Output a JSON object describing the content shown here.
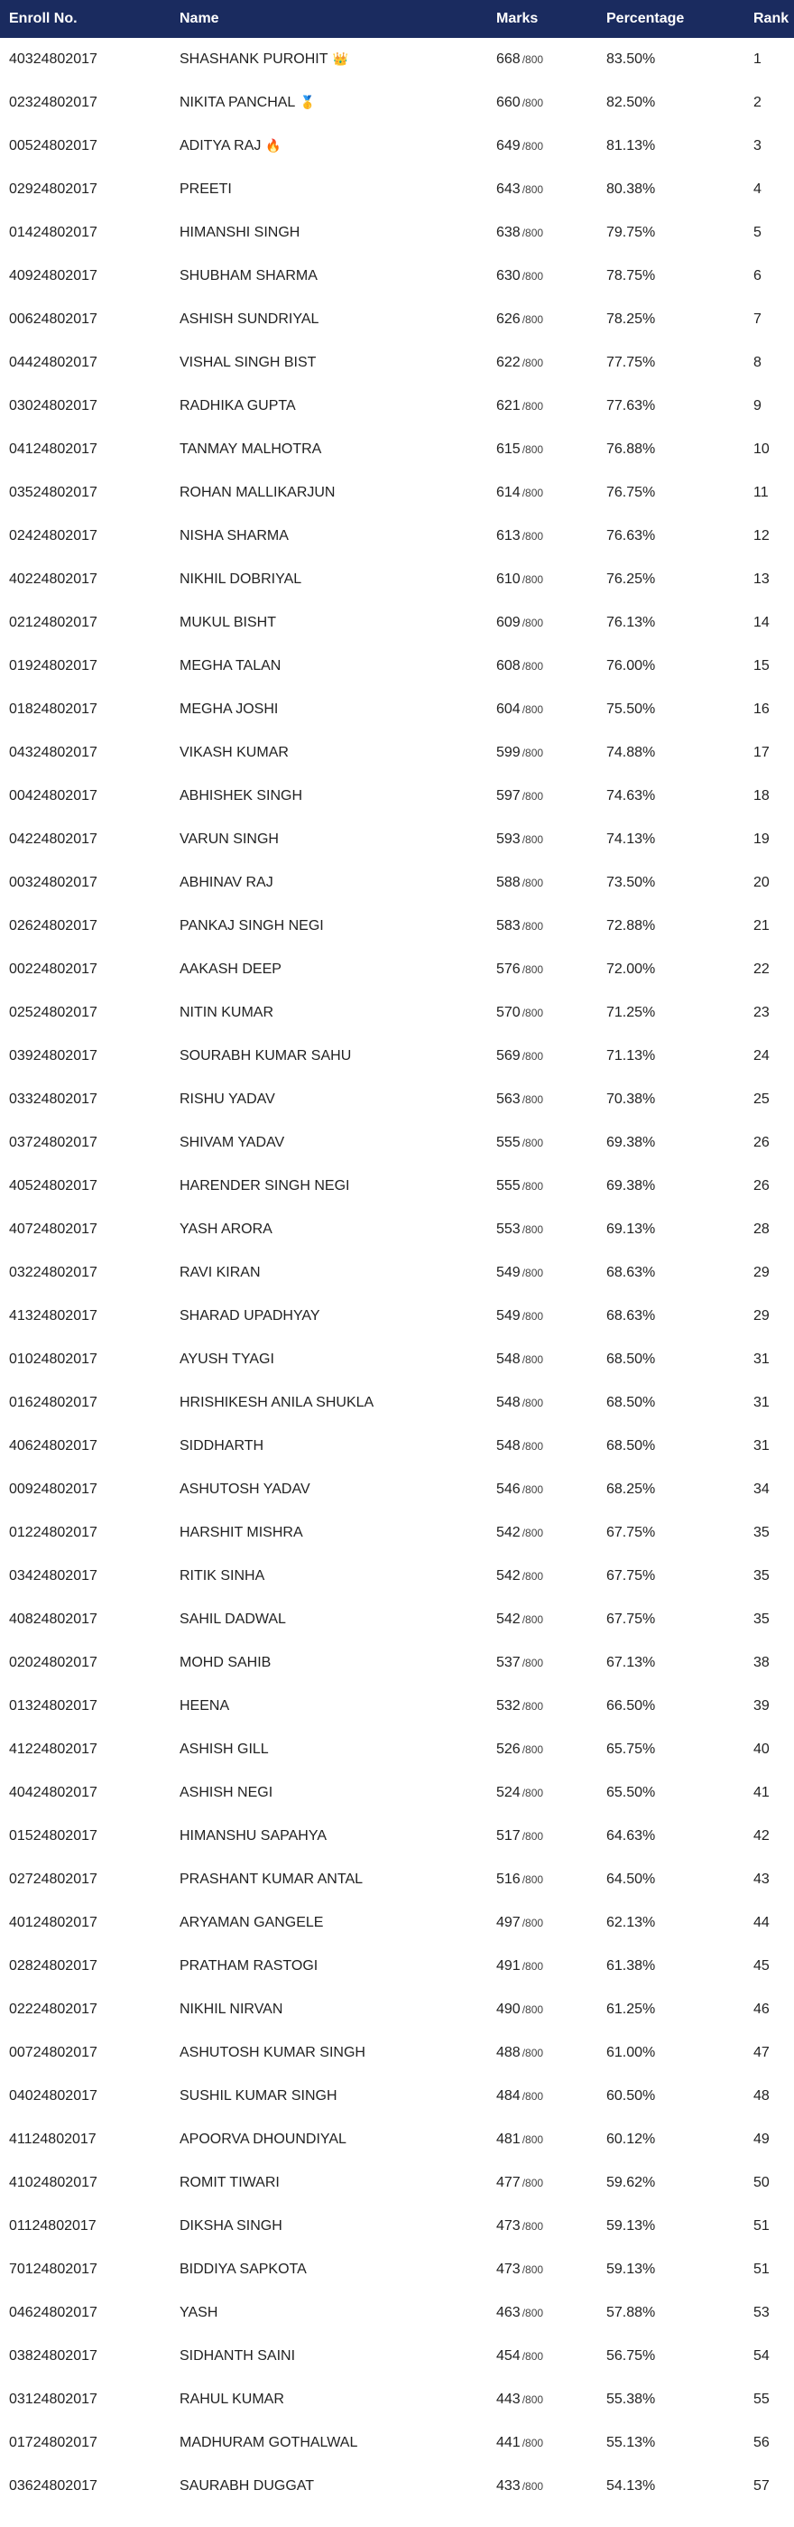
{
  "header": {
    "enroll": "Enroll No.",
    "name": "Name",
    "marks": "Marks",
    "percentage": "Percentage",
    "rank": "Rank"
  },
  "total_label": "/800",
  "rows": [
    {
      "enroll": "40324802017",
      "name": "SHASHANK PUROHIT",
      "badge": "👑",
      "marks": "668",
      "percentage": "83.50%",
      "rank": "1"
    },
    {
      "enroll": "02324802017",
      "name": "NIKITA PANCHAL",
      "badge": "🥇",
      "marks": "660",
      "percentage": "82.50%",
      "rank": "2"
    },
    {
      "enroll": "00524802017",
      "name": "ADITYA RAJ",
      "badge": "🔥",
      "marks": "649",
      "percentage": "81.13%",
      "rank": "3"
    },
    {
      "enroll": "02924802017",
      "name": "PREETI",
      "marks": "643",
      "percentage": "80.38%",
      "rank": "4"
    },
    {
      "enroll": "01424802017",
      "name": "HIMANSHI SINGH",
      "marks": "638",
      "percentage": "79.75%",
      "rank": "5"
    },
    {
      "enroll": "40924802017",
      "name": "SHUBHAM SHARMA",
      "marks": "630",
      "percentage": "78.75%",
      "rank": "6"
    },
    {
      "enroll": "00624802017",
      "name": "ASHISH SUNDRIYAL",
      "marks": "626",
      "percentage": "78.25%",
      "rank": "7"
    },
    {
      "enroll": "04424802017",
      "name": "VISHAL SINGH BIST",
      "marks": "622",
      "percentage": "77.75%",
      "rank": "8"
    },
    {
      "enroll": "03024802017",
      "name": "RADHIKA GUPTA",
      "marks": "621",
      "percentage": "77.63%",
      "rank": "9"
    },
    {
      "enroll": "04124802017",
      "name": "TANMAY MALHOTRA",
      "marks": "615",
      "percentage": "76.88%",
      "rank": "10"
    },
    {
      "enroll": "03524802017",
      "name": "ROHAN MALLIKARJUN",
      "marks": "614",
      "percentage": "76.75%",
      "rank": "11"
    },
    {
      "enroll": "02424802017",
      "name": "NISHA SHARMA",
      "marks": "613",
      "percentage": "76.63%",
      "rank": "12"
    },
    {
      "enroll": "40224802017",
      "name": "NIKHIL DOBRIYAL",
      "marks": "610",
      "percentage": "76.25%",
      "rank": "13"
    },
    {
      "enroll": "02124802017",
      "name": "MUKUL BISHT",
      "marks": "609",
      "percentage": "76.13%",
      "rank": "14"
    },
    {
      "enroll": "01924802017",
      "name": "MEGHA TALAN",
      "marks": "608",
      "percentage": "76.00%",
      "rank": "15"
    },
    {
      "enroll": "01824802017",
      "name": "MEGHA JOSHI",
      "marks": "604",
      "percentage": "75.50%",
      "rank": "16"
    },
    {
      "enroll": "04324802017",
      "name": "VIKASH KUMAR",
      "marks": "599",
      "percentage": "74.88%",
      "rank": "17"
    },
    {
      "enroll": "00424802017",
      "name": "ABHISHEK SINGH",
      "marks": "597",
      "percentage": "74.63%",
      "rank": "18"
    },
    {
      "enroll": "04224802017",
      "name": "VARUN SINGH",
      "marks": "593",
      "percentage": "74.13%",
      "rank": "19"
    },
    {
      "enroll": "00324802017",
      "name": "ABHINAV RAJ",
      "marks": "588",
      "percentage": "73.50%",
      "rank": "20"
    },
    {
      "enroll": "02624802017",
      "name": "PANKAJ SINGH NEGI",
      "marks": "583",
      "percentage": "72.88%",
      "rank": "21"
    },
    {
      "enroll": "00224802017",
      "name": "AAKASH DEEP",
      "marks": "576",
      "percentage": "72.00%",
      "rank": "22"
    },
    {
      "enroll": "02524802017",
      "name": "NITIN KUMAR",
      "marks": "570",
      "percentage": "71.25%",
      "rank": "23"
    },
    {
      "enroll": "03924802017",
      "name": "SOURABH KUMAR SAHU",
      "marks": "569",
      "percentage": "71.13%",
      "rank": "24"
    },
    {
      "enroll": "03324802017",
      "name": "RISHU YADAV",
      "marks": "563",
      "percentage": "70.38%",
      "rank": "25"
    },
    {
      "enroll": "03724802017",
      "name": "SHIVAM YADAV",
      "marks": "555",
      "percentage": "69.38%",
      "rank": "26"
    },
    {
      "enroll": "40524802017",
      "name": "HARENDER SINGH NEGI",
      "marks": "555",
      "percentage": "69.38%",
      "rank": "26"
    },
    {
      "enroll": "40724802017",
      "name": "YASH ARORA",
      "marks": "553",
      "percentage": "69.13%",
      "rank": "28"
    },
    {
      "enroll": "03224802017",
      "name": "RAVI KIRAN",
      "marks": "549",
      "percentage": "68.63%",
      "rank": "29"
    },
    {
      "enroll": "41324802017",
      "name": "SHARAD UPADHYAY",
      "marks": "549",
      "percentage": "68.63%",
      "rank": "29"
    },
    {
      "enroll": "01024802017",
      "name": "AYUSH TYAGI",
      "marks": "548",
      "percentage": "68.50%",
      "rank": "31"
    },
    {
      "enroll": "01624802017",
      "name": "HRISHIKESH ANILA SHUKLA",
      "marks": "548",
      "percentage": "68.50%",
      "rank": "31"
    },
    {
      "enroll": "40624802017",
      "name": "SIDDHARTH",
      "marks": "548",
      "percentage": "68.50%",
      "rank": "31"
    },
    {
      "enroll": "00924802017",
      "name": "ASHUTOSH YADAV",
      "marks": "546",
      "percentage": "68.25%",
      "rank": "34"
    },
    {
      "enroll": "01224802017",
      "name": "HARSHIT MISHRA",
      "marks": "542",
      "percentage": "67.75%",
      "rank": "35"
    },
    {
      "enroll": "03424802017",
      "name": "RITIK SINHA",
      "marks": "542",
      "percentage": "67.75%",
      "rank": "35"
    },
    {
      "enroll": "40824802017",
      "name": "SAHIL DADWAL",
      "marks": "542",
      "percentage": "67.75%",
      "rank": "35"
    },
    {
      "enroll": "02024802017",
      "name": "MOHD SAHIB",
      "marks": "537",
      "percentage": "67.13%",
      "rank": "38"
    },
    {
      "enroll": "01324802017",
      "name": "HEENA",
      "marks": "532",
      "percentage": "66.50%",
      "rank": "39"
    },
    {
      "enroll": "41224802017",
      "name": "ASHISH GILL",
      "marks": "526",
      "percentage": "65.75%",
      "rank": "40"
    },
    {
      "enroll": "40424802017",
      "name": "ASHISH NEGI",
      "marks": "524",
      "percentage": "65.50%",
      "rank": "41"
    },
    {
      "enroll": "01524802017",
      "name": "HIMANSHU SAPAHYA",
      "marks": "517",
      "percentage": "64.63%",
      "rank": "42"
    },
    {
      "enroll": "02724802017",
      "name": "PRASHANT KUMAR ANTAL",
      "marks": "516",
      "percentage": "64.50%",
      "rank": "43"
    },
    {
      "enroll": "40124802017",
      "name": "ARYAMAN GANGELE",
      "marks": "497",
      "percentage": "62.13%",
      "rank": "44"
    },
    {
      "enroll": "02824802017",
      "name": "PRATHAM RASTOGI",
      "marks": "491",
      "percentage": "61.38%",
      "rank": "45"
    },
    {
      "enroll": "02224802017",
      "name": "NIKHIL NIRVAN",
      "marks": "490",
      "percentage": "61.25%",
      "rank": "46"
    },
    {
      "enroll": "00724802017",
      "name": "ASHUTOSH KUMAR SINGH",
      "marks": "488",
      "percentage": "61.00%",
      "rank": "47"
    },
    {
      "enroll": "04024802017",
      "name": "SUSHIL KUMAR SINGH",
      "marks": "484",
      "percentage": "60.50%",
      "rank": "48"
    },
    {
      "enroll": "41124802017",
      "name": "APOORVA DHOUNDIYAL",
      "marks": "481",
      "percentage": "60.12%",
      "rank": "49"
    },
    {
      "enroll": "41024802017",
      "name": "ROMIT TIWARI",
      "marks": "477",
      "percentage": "59.62%",
      "rank": "50"
    },
    {
      "enroll": "01124802017",
      "name": "DIKSHA SINGH",
      "marks": "473",
      "percentage": "59.13%",
      "rank": "51"
    },
    {
      "enroll": "70124802017",
      "name": "BIDDIYA SAPKOTA",
      "marks": "473",
      "percentage": "59.13%",
      "rank": "51"
    },
    {
      "enroll": "04624802017",
      "name": "YASH",
      "marks": "463",
      "percentage": "57.88%",
      "rank": "53"
    },
    {
      "enroll": "03824802017",
      "name": "SIDHANTH SAINI",
      "marks": "454",
      "percentage": "56.75%",
      "rank": "54"
    },
    {
      "enroll": "03124802017",
      "name": "RAHUL KUMAR",
      "marks": "443",
      "percentage": "55.38%",
      "rank": "55"
    },
    {
      "enroll": "01724802017",
      "name": "MADHURAM GOTHALWAL",
      "marks": "441",
      "percentage": "55.13%",
      "rank": "56"
    },
    {
      "enroll": "03624802017",
      "name": "SAURABH DUGGAT",
      "marks": "433",
      "percentage": "54.13%",
      "rank": "57"
    }
  ]
}
